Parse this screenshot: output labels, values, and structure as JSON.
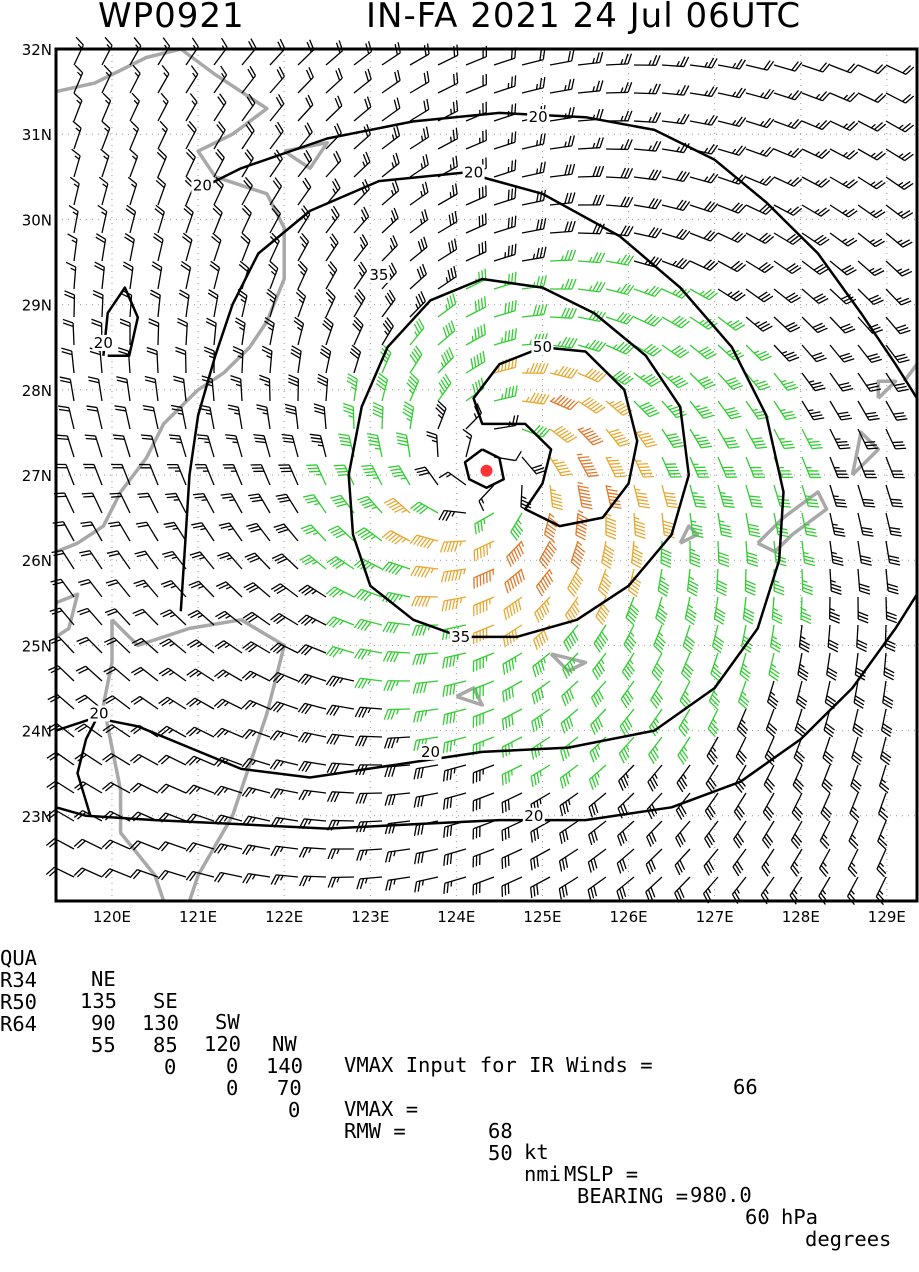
{
  "header": {
    "storm_id": "WP0921",
    "storm_title": "IN-FA 2021 24 Jul 06UTC"
  },
  "map": {
    "lon_labels": [
      "120E",
      "121E",
      "122E",
      "123E",
      "124E",
      "125E",
      "126E",
      "127E",
      "128E",
      "129E"
    ],
    "lat_labels": [
      "32N",
      "31N",
      "30N",
      "29N",
      "28N",
      "27N",
      "26N",
      "25N",
      "24N",
      "23N"
    ],
    "lon_range": [
      119.35,
      129.35
    ],
    "lat_range": [
      22.0,
      32.0
    ],
    "center": {
      "lon": 124.35,
      "lat": 27.05
    },
    "contour_labels": [
      {
        "text": "20",
        "lon": 124.95,
        "lat": 31.2
      },
      {
        "text": "20",
        "lon": 124.2,
        "lat": 30.55
      },
      {
        "text": "20",
        "lon": 121.05,
        "lat": 30.4
      },
      {
        "text": "20",
        "lon": 119.9,
        "lat": 28.55
      },
      {
        "text": "20",
        "lon": 119.85,
        "lat": 24.2
      },
      {
        "text": "20",
        "lon": 123.7,
        "lat": 23.75
      },
      {
        "text": "20",
        "lon": 124.9,
        "lat": 23.0
      },
      {
        "text": "35",
        "lon": 123.1,
        "lat": 29.35
      },
      {
        "text": "35",
        "lon": 124.05,
        "lat": 25.1
      },
      {
        "text": "50",
        "lon": 125.0,
        "lat": 28.5
      }
    ],
    "colors": {
      "below_34kt": "#000000",
      "34_to_49kt": "#33cc33",
      "50_to_63kt": "#e6a833",
      "64kt_plus": "#e07a2c",
      "land": "#a8a8a8",
      "center": "#ff3333"
    }
  },
  "table": {
    "header": [
      "QUA",
      "NE",
      "SE",
      "SW",
      "NW"
    ],
    "rows": [
      [
        "R34",
        "135",
        "130",
        "120",
        "140"
      ],
      [
        "R50",
        "90",
        "85",
        "0",
        "70"
      ],
      [
        "R64",
        "55",
        "0",
        "0",
        "0"
      ]
    ],
    "vmax_input_label": "VMAX Input for IR Winds =",
    "vmax_input_value": "66",
    "vmax_label": "VMAX =",
    "vmax_value": "68",
    "vmax_unit": "kt",
    "mslp_label": "MSLP =",
    "mslp_value": "980.0",
    "mslp_unit": "hPa",
    "rmw_label": "RMW =",
    "rmw_value": "50",
    "rmw_unit": "nmi",
    "bearing_label": "BEARING =",
    "bearing_value": "60",
    "bearing_unit": "degrees"
  }
}
